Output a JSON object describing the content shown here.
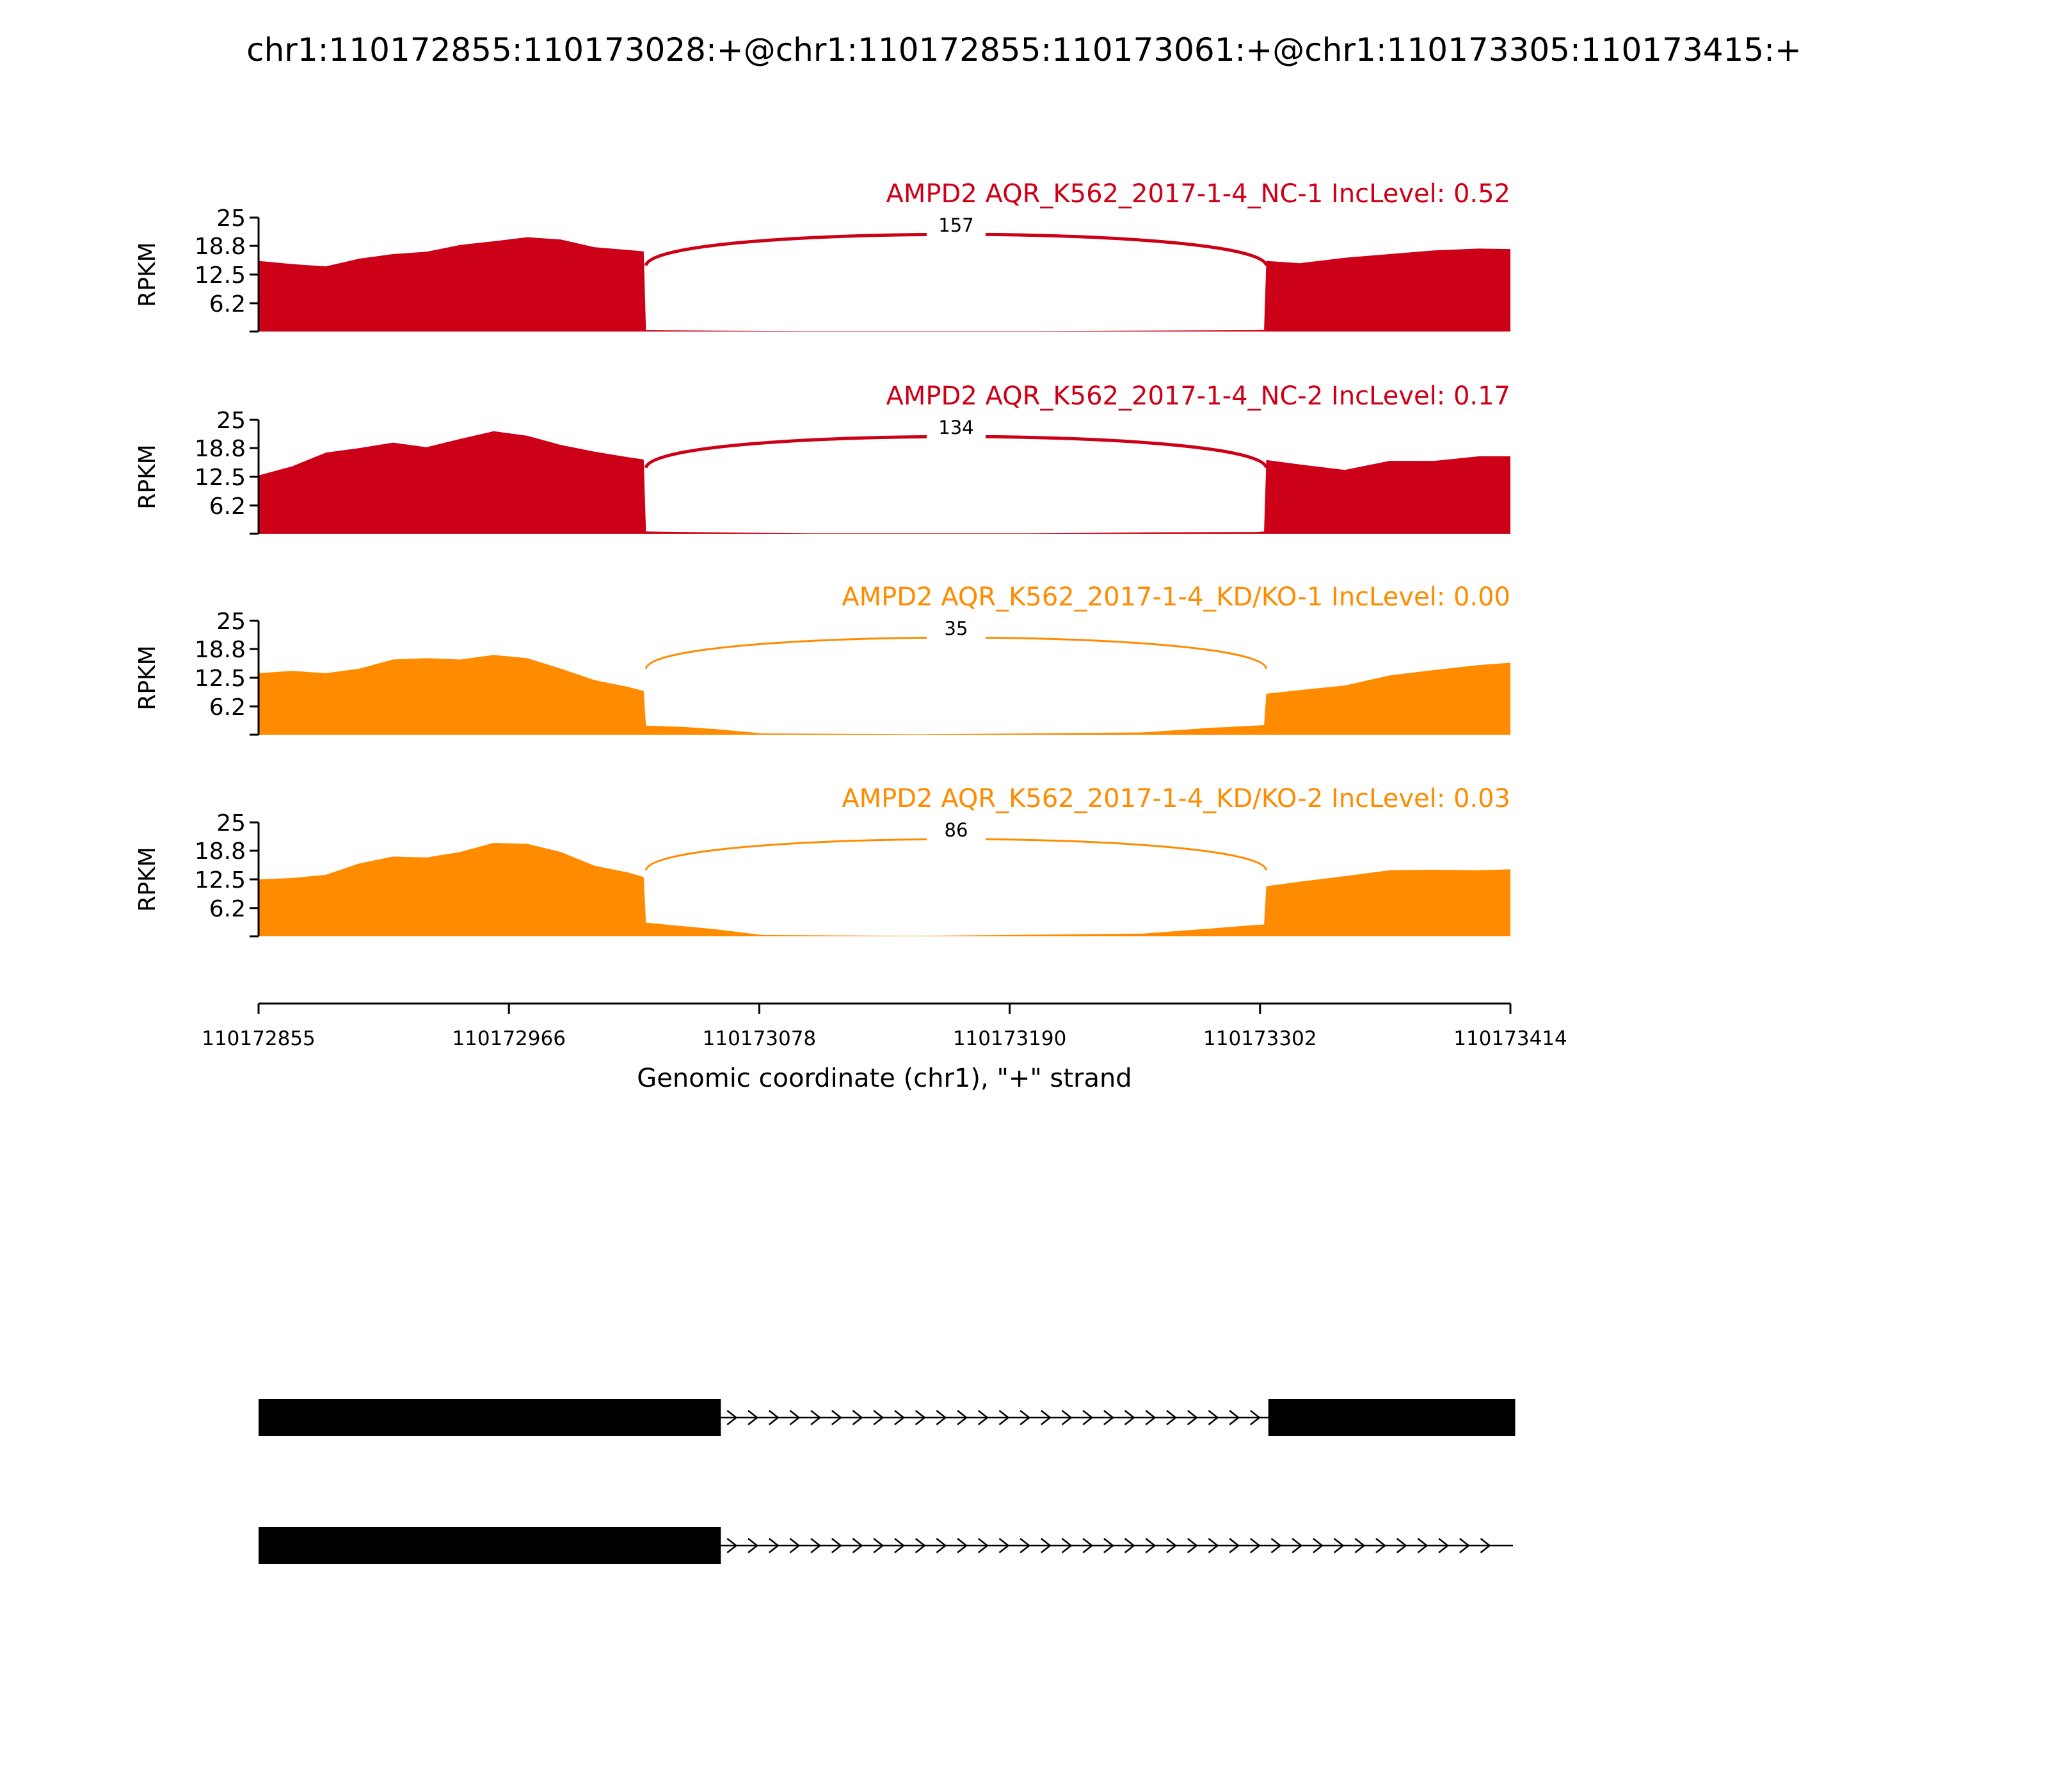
{
  "title": "chr1:110172855:110173028:+@chr1:110172855:110173061:+@chr1:110173305:110173415:+",
  "chart_data": {
    "type": "area",
    "title": "chr1:110172855:110173028:+@chr1:110172855:110173061:+@chr1:110173305:110173415:+",
    "xlabel": "Genomic coordinate (chr1), \"+\" strand",
    "xlim": [
      110172855,
      110173414
    ],
    "xticks": [
      "110172855",
      "110172966",
      "110173078",
      "110173190",
      "110173302",
      "110173414"
    ],
    "ylabel": "RPKM",
    "ylim": [
      0,
      25
    ],
    "yticks": [
      "25",
      "18.8",
      "12.5",
      "6.2"
    ],
    "grid": false,
    "colors": {
      "nc": "#cc0016",
      "kd": "#ff8b00"
    },
    "tracks": [
      {
        "name": "AMPD2 AQR_K562_2017-1-4_NC-1 IncLevel: 0.52",
        "color": "#cc0016",
        "junction": {
          "start": 110173028,
          "end": 110173305,
          "count": "157"
        },
        "x": [
          110172855,
          110172870,
          110172885,
          110172900,
          110172915,
          110172930,
          110172945,
          110172960,
          110172975,
          110172990,
          110173005,
          110173020,
          110173027,
          110173028,
          110173060,
          110173100,
          110173200,
          110173250,
          110173300,
          110173304,
          110173305,
          110173320,
          110173340,
          110173360,
          110173380,
          110173400,
          110173414
        ],
        "values": [
          15.5,
          14.8,
          14.3,
          16.0,
          17.0,
          17.5,
          19.0,
          19.8,
          20.7,
          20.2,
          18.5,
          17.9,
          17.6,
          0.3,
          0.2,
          0.1,
          0.1,
          0.2,
          0.3,
          0.4,
          15.5,
          15.0,
          16.2,
          17.0,
          17.8,
          18.2,
          18.1
        ]
      },
      {
        "name": "AMPD2 AQR_K562_2017-1-4_NC-2 IncLevel: 0.17",
        "color": "#cc0016",
        "junction": {
          "start": 110173028,
          "end": 110173305,
          "count": "134"
        },
        "x": [
          110172855,
          110172870,
          110172885,
          110172900,
          110172915,
          110172930,
          110172945,
          110172960,
          110172975,
          110172990,
          110173005,
          110173020,
          110173027,
          110173028,
          110173060,
          110173100,
          110173200,
          110173250,
          110173300,
          110173304,
          110173305,
          110173320,
          110173340,
          110173360,
          110173380,
          110173400,
          110173414
        ],
        "values": [
          12.8,
          14.8,
          17.8,
          18.8,
          20.0,
          19.0,
          20.8,
          22.5,
          21.5,
          19.5,
          18.0,
          16.8,
          16.3,
          0.5,
          0.3,
          0.1,
          0.1,
          0.3,
          0.4,
          0.5,
          16.2,
          15.2,
          14.0,
          16.0,
          16.0,
          17.0,
          17.0
        ]
      },
      {
        "name": "AMPD2 AQR_K562_2017-1-4_KD/KO-1 IncLevel: 0.00",
        "color": "#ff8b00",
        "junction": {
          "start": 110173028,
          "end": 110173305,
          "count": "35"
        },
        "x": [
          110172855,
          110172870,
          110172885,
          110172900,
          110172915,
          110172930,
          110172945,
          110172960,
          110172975,
          110172990,
          110173005,
          110173020,
          110173027,
          110173028,
          110173045,
          110173060,
          110173080,
          110173150,
          110173250,
          110173280,
          110173300,
          110173304,
          110173305,
          110173320,
          110173340,
          110173360,
          110173380,
          110173400,
          110173414
        ],
        "values": [
          13.5,
          14.0,
          13.5,
          14.5,
          16.5,
          16.8,
          16.5,
          17.5,
          16.8,
          14.5,
          12.0,
          10.5,
          9.6,
          2.0,
          1.7,
          1.2,
          0.3,
          0.1,
          0.5,
          1.5,
          2.0,
          2.1,
          9.0,
          9.8,
          10.8,
          13.0,
          14.2,
          15.3,
          15.8
        ]
      },
      {
        "name": "AMPD2 AQR_K562_2017-1-4_KD/KO-2 IncLevel: 0.03",
        "color": "#ff8b00",
        "junction": {
          "start": 110173028,
          "end": 110173305,
          "count": "86"
        },
        "x": [
          110172855,
          110172870,
          110172885,
          110172900,
          110172915,
          110172930,
          110172945,
          110172960,
          110172975,
          110172990,
          110173005,
          110173020,
          110173027,
          110173028,
          110173045,
          110173060,
          110173080,
          110173150,
          110173250,
          110173280,
          110173300,
          110173304,
          110173305,
          110173320,
          110173340,
          110173360,
          110173380,
          110173400,
          110173414
        ],
        "values": [
          12.5,
          12.8,
          13.5,
          16.0,
          17.5,
          17.3,
          18.5,
          20.5,
          20.3,
          18.5,
          15.5,
          14.0,
          13.0,
          3.0,
          2.2,
          1.5,
          0.3,
          0.1,
          0.6,
          1.7,
          2.5,
          2.6,
          11.0,
          12.0,
          13.2,
          14.5,
          14.6,
          14.5,
          14.7
        ]
      }
    ],
    "transcripts": [
      {
        "exons": [
          [
            110172855,
            110173061
          ],
          [
            110173305,
            110173415
          ]
        ],
        "intron_to": 110173305
      },
      {
        "exons": [
          [
            110172855,
            110173061
          ]
        ],
        "intron_to": 110173414
      }
    ]
  }
}
